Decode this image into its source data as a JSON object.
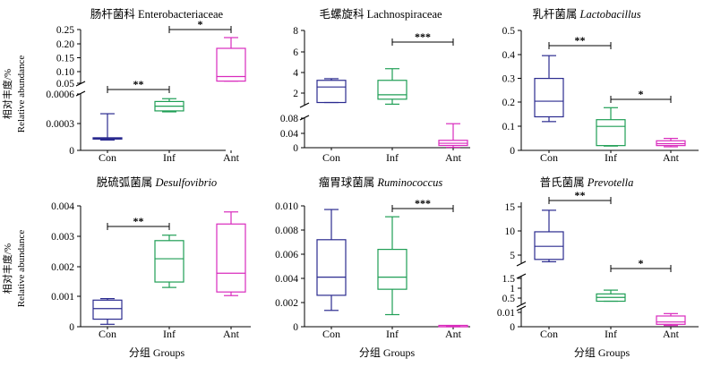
{
  "figure": {
    "y_label_cn": "相对丰度/%",
    "y_label_en": "Relative abundance",
    "x_label": "分组 Groups"
  },
  "chart_data": [
    {
      "type": "boxplot",
      "title": "肠杆菌科 Enterobacteriaceae",
      "title_cn": "肠杆菌科",
      "title_en": "Enterobacteriaceae",
      "title_italic": false,
      "categories": [
        "Con",
        "Inf",
        "Ant"
      ],
      "axis_break": true,
      "y_lower": {
        "range": [
          0,
          0.0006
        ],
        "ticks": [
          "0",
          "0.0003",
          "0.0006"
        ]
      },
      "y_upper": {
        "range": [
          0.05,
          0.25
        ],
        "ticks": [
          "0.05",
          "0.10",
          "0.15",
          "0.20",
          "0.25"
        ]
      },
      "boxes": [
        {
          "group": "Con",
          "min": 0.00011,
          "q1": 0.00012,
          "median": 0.000125,
          "q3": 0.00013,
          "max": 0.00039,
          "color": "#2b2b8f"
        },
        {
          "group": "Inf",
          "min": 0.00041,
          "q1": 0.00042,
          "median": 0.00047,
          "q3": 0.00052,
          "max": 0.00055,
          "color": "#1f9e55"
        },
        {
          "group": "Ant",
          "min": 0.058,
          "q1": 0.058,
          "median": 0.075,
          "q3": 0.18,
          "max": 0.22,
          "color": "#d92bbd"
        }
      ],
      "significance": [
        {
          "from": "Con",
          "to": "Inf",
          "label": "**"
        },
        {
          "from": "Inf",
          "to": "Ant",
          "label": "*"
        }
      ]
    },
    {
      "type": "boxplot",
      "title": "毛螺旋科 Lachnospiraceae",
      "title_cn": "毛螺旋科",
      "title_en": "Lachnospiraceae",
      "title_italic": false,
      "categories": [
        "Con",
        "Inf",
        "Ant"
      ],
      "axis_break": true,
      "y_lower": {
        "range": [
          0,
          0.08
        ],
        "ticks": [
          "0",
          "0.04",
          "0.08"
        ]
      },
      "y_upper": {
        "range": [
          1.3,
          8
        ],
        "ticks": [
          "2",
          "4",
          "6",
          "8"
        ]
      },
      "boxes": [
        {
          "group": "Con",
          "min": 1.5,
          "q1": 1.5,
          "median": 2.9,
          "q3": 3.5,
          "max": 3.65,
          "color": "#2b2b8f"
        },
        {
          "group": "Inf",
          "min": 1.35,
          "q1": 1.8,
          "median": 2.2,
          "q3": 3.5,
          "max": 4.55,
          "color": "#1f9e55"
        },
        {
          "group": "Ant",
          "min": 0.001,
          "q1": 0.006,
          "median": 0.012,
          "q3": 0.02,
          "max": 0.065,
          "color": "#d92bbd"
        }
      ],
      "significance": [
        {
          "from": "Inf",
          "to": "Ant",
          "label": "***"
        }
      ]
    },
    {
      "type": "boxplot",
      "title": "乳杆菌属 Lactobacillus",
      "title_cn": "乳杆菌属",
      "title_en": "Lactobacillus",
      "title_italic": true,
      "categories": [
        "Con",
        "Inf",
        "Ant"
      ],
      "axis_break": false,
      "y": {
        "range": [
          0,
          0.5
        ],
        "ticks": [
          "0",
          "0.1",
          "0.2",
          "0.3",
          "0.4",
          "0.5"
        ]
      },
      "boxes": [
        {
          "group": "Con",
          "min": 0.12,
          "q1": 0.14,
          "median": 0.205,
          "q3": 0.3,
          "max": 0.395,
          "color": "#2b2b8f"
        },
        {
          "group": "Inf",
          "min": 0.018,
          "q1": 0.02,
          "median": 0.1,
          "q3": 0.128,
          "max": 0.178,
          "color": "#1f9e55"
        },
        {
          "group": "Ant",
          "min": 0.015,
          "q1": 0.02,
          "median": 0.028,
          "q3": 0.04,
          "max": 0.05,
          "color": "#d92bbd"
        }
      ],
      "significance": [
        {
          "from": "Con",
          "to": "Inf",
          "label": "**"
        },
        {
          "from": "Inf",
          "to": "Ant",
          "label": "*"
        }
      ]
    },
    {
      "type": "boxplot",
      "title": "脱硫弧菌属 Desulfovibrio",
      "title_cn": "脱硫弧菌属",
      "title_en": "Desulfovibrio",
      "title_italic": true,
      "categories": [
        "Con",
        "Inf",
        "Ant"
      ],
      "axis_break": false,
      "y": {
        "range": [
          0,
          0.004
        ],
        "ticks": [
          "0",
          "0.001",
          "0.002",
          "0.003",
          "0.004"
        ]
      },
      "boxes": [
        {
          "group": "Con",
          "min": 8e-05,
          "q1": 0.00025,
          "median": 0.0006,
          "q3": 0.00088,
          "max": 0.00093,
          "color": "#2b2b8f"
        },
        {
          "group": "Inf",
          "min": 0.0013,
          "q1": 0.00148,
          "median": 0.00225,
          "q3": 0.00285,
          "max": 0.00303,
          "color": "#1f9e55"
        },
        {
          "group": "Ant",
          "min": 0.00103,
          "q1": 0.00115,
          "median": 0.00177,
          "q3": 0.0034,
          "max": 0.0038,
          "color": "#d92bbd"
        }
      ],
      "significance": [
        {
          "from": "Con",
          "to": "Inf",
          "label": "**"
        }
      ]
    },
    {
      "type": "boxplot",
      "title": "瘤胃球菌属 Ruminococcus",
      "title_cn": "瘤胃球菌属",
      "title_en": "Ruminococcus",
      "title_italic": true,
      "categories": [
        "Con",
        "Inf",
        "Ant"
      ],
      "axis_break": false,
      "y": {
        "range": [
          0,
          0.01
        ],
        "ticks": [
          "0",
          "0.002",
          "0.004",
          "0.006",
          "0.008",
          "0.010"
        ]
      },
      "boxes": [
        {
          "group": "Con",
          "min": 0.00135,
          "q1": 0.0026,
          "median": 0.0041,
          "q3": 0.0072,
          "max": 0.0097,
          "color": "#2b2b8f"
        },
        {
          "group": "Inf",
          "min": 0.001,
          "q1": 0.0031,
          "median": 0.0041,
          "q3": 0.0064,
          "max": 0.0091,
          "color": "#1f9e55"
        },
        {
          "group": "Ant",
          "min": 0,
          "q1": 0,
          "median": 0,
          "q3": 2e-05,
          "max": 3e-05,
          "color": "#d92bbd"
        }
      ],
      "significance": [
        {
          "from": "Inf",
          "to": "Ant",
          "label": "***"
        }
      ]
    },
    {
      "type": "boxplot",
      "title": "普氏菌属 Prevotella",
      "title_cn": "普氏菌属",
      "title_en": "Prevotella",
      "title_italic": true,
      "categories": [
        "Con",
        "Inf",
        "Ant"
      ],
      "axis_break": true,
      "axis_segments": [
        {
          "range": [
            0,
            0.015
          ],
          "ticks": [
            "0",
            "0.01"
          ]
        },
        {
          "range": [
            0.2,
            1.8
          ],
          "ticks": [
            "0.5",
            "1",
            "1.5"
          ]
        },
        {
          "range": [
            3,
            16
          ],
          "ticks": [
            "5",
            "10",
            "15"
          ]
        }
      ],
      "boxes": [
        {
          "group": "Con",
          "min": 3.3,
          "q1": 3.8,
          "median": 6.6,
          "q3": 9.7,
          "max": 14.3,
          "color": "#2b2b8f"
        },
        {
          "group": "Inf",
          "min": 0.38,
          "q1": 0.38,
          "median": 0.6,
          "q3": 0.8,
          "max": 1.02,
          "color": "#1f9e55"
        },
        {
          "group": "Ant",
          "min": 0.001,
          "q1": 0.002,
          "median": 0.004,
          "q3": 0.009,
          "max": 0.011,
          "color": "#d92bbd"
        }
      ],
      "significance": [
        {
          "from": "Con",
          "to": "Inf",
          "label": "**"
        },
        {
          "from": "Inf",
          "to": "Ant",
          "label": "*"
        }
      ]
    }
  ]
}
